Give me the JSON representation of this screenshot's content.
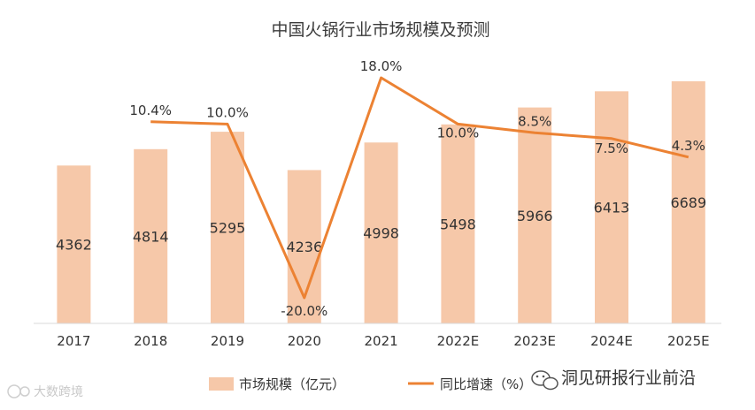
{
  "chart_data": {
    "type": "bar",
    "title": "中国火锅行业市场规模及预测",
    "categories": [
      "2017",
      "2018",
      "2019",
      "2020",
      "2021",
      "2022E",
      "2023E",
      "2024E",
      "2025E"
    ],
    "series": [
      {
        "name": "市场规模（亿元）",
        "type": "bar",
        "values": [
          4362,
          4814,
          5295,
          4236,
          4998,
          5498,
          5966,
          6413,
          6689
        ],
        "color": "#f6c8a9"
      },
      {
        "name": "同比增速（%）",
        "type": "line",
        "values": [
          null,
          10.4,
          10.0,
          -20.0,
          18.0,
          10.0,
          8.5,
          7.5,
          4.3
        ],
        "labels": [
          null,
          "10.4%",
          "10.0%",
          "-20.0%",
          "18.0%",
          "10.0%",
          "8.5%",
          "7.5%",
          "4.3%"
        ],
        "color": "#ec8233"
      }
    ],
    "bar_ylim": [
      0,
      7000
    ],
    "line_ylim": [
      -25,
      20
    ],
    "legend_position": "bottom-center"
  },
  "watermark": {
    "left": "大数跨境",
    "right": "洞见研报行业前沿"
  },
  "colors": {
    "bar": "#f6c8a9",
    "line": "#ec8233",
    "axis": "#d9d9d9",
    "text": "#333333"
  }
}
